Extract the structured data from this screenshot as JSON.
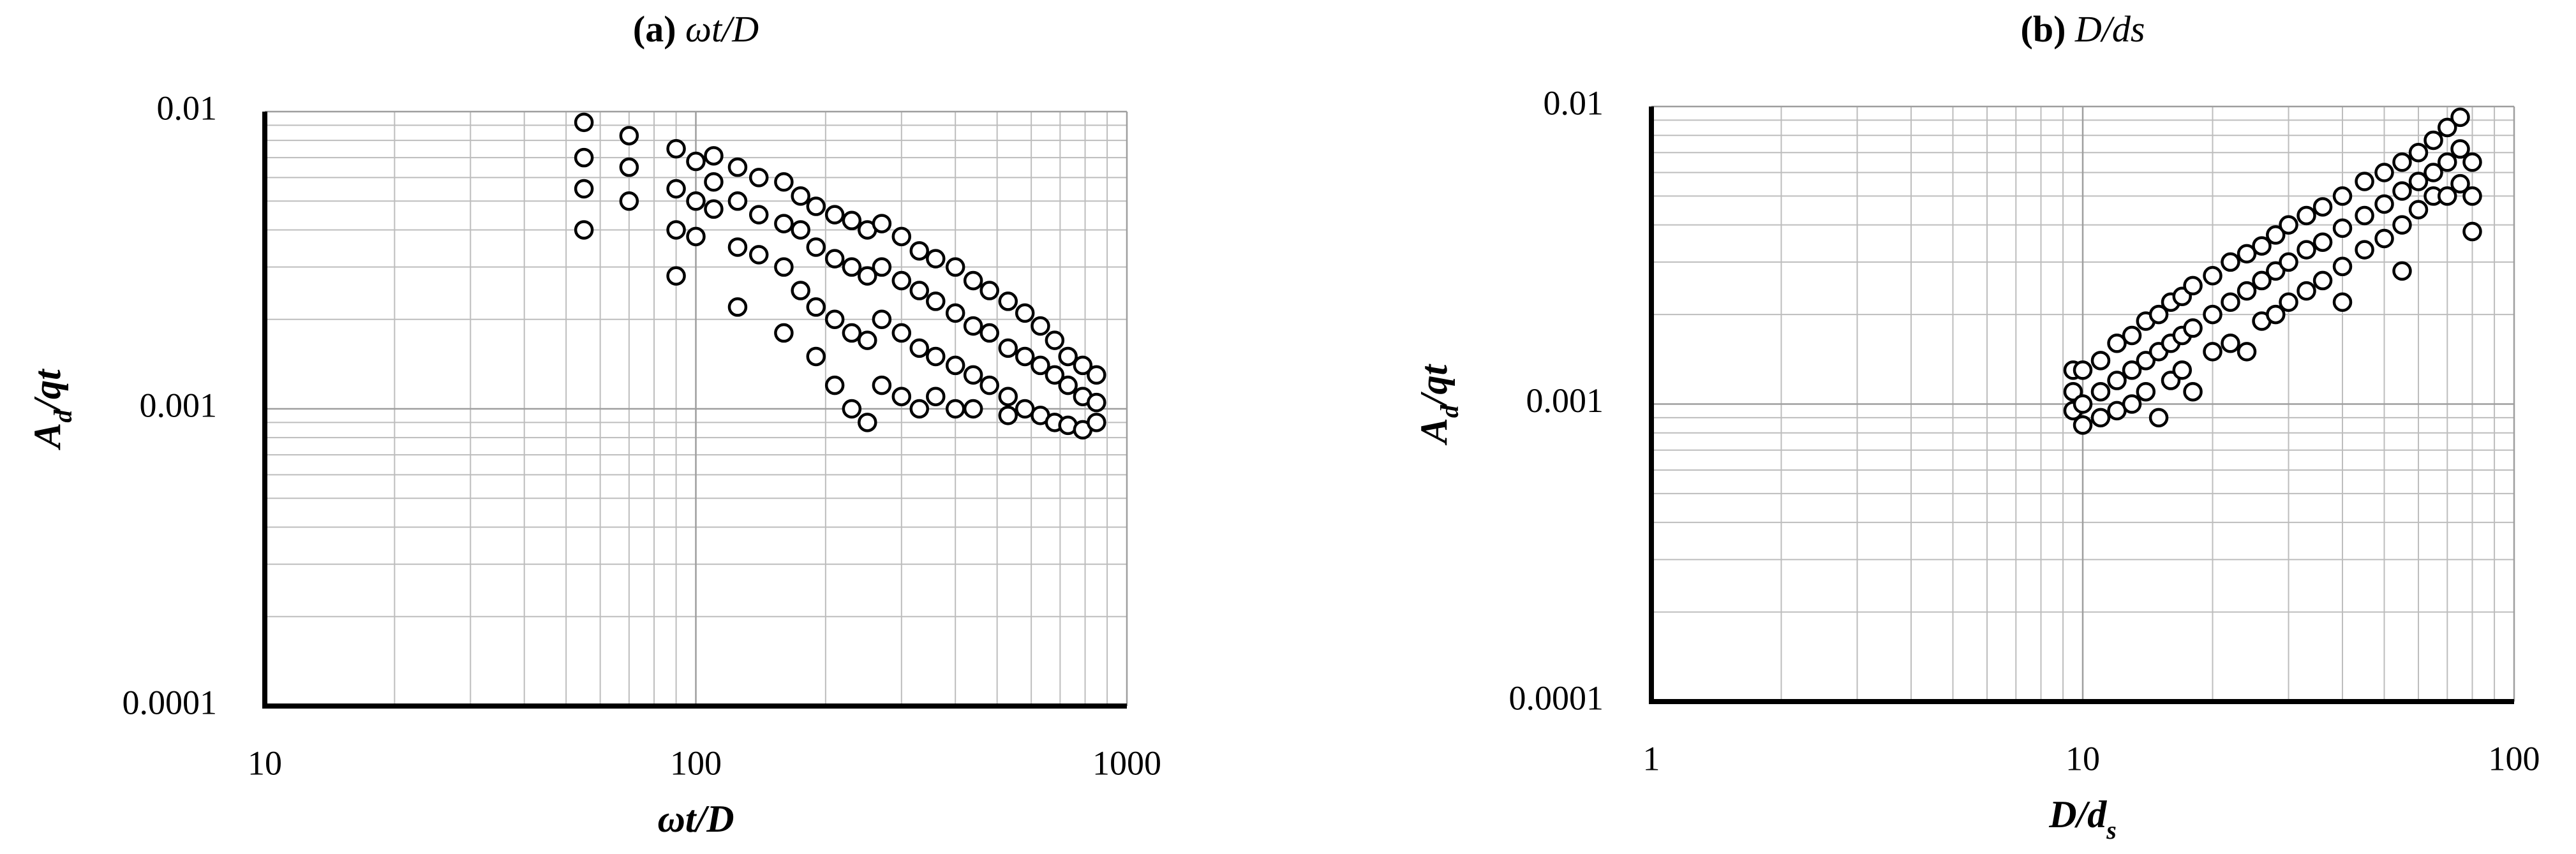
{
  "chart_data": [
    {
      "type": "scatter",
      "panel_label": "(a)",
      "title": "ωt/D",
      "xlabel": "ωt/D",
      "ylabel": [
        "A",
        "d",
        "/qt"
      ],
      "xscale": "log",
      "yscale": "log",
      "grid": true,
      "minor_grid": true,
      "xlim": [
        10,
        1000
      ],
      "xticks": [
        10,
        100,
        1000
      ],
      "ylim": [
        0.0001,
        0.01
      ],
      "yticks": [
        0.0001,
        0.001,
        0.01
      ],
      "marker_fill": "#ffffff",
      "marker_edge": "#000000",
      "x": [
        55,
        55,
        55,
        55,
        70,
        70,
        70,
        90,
        90,
        90,
        90,
        100,
        100,
        100,
        110,
        110,
        110,
        125,
        125,
        125,
        125,
        140,
        140,
        140,
        160,
        160,
        160,
        160,
        175,
        175,
        175,
        190,
        190,
        190,
        190,
        210,
        210,
        210,
        210,
        230,
        230,
        230,
        230,
        250,
        250,
        250,
        250,
        270,
        270,
        270,
        270,
        300,
        300,
        300,
        300,
        330,
        330,
        330,
        330,
        360,
        360,
        360,
        360,
        400,
        400,
        400,
        400,
        440,
        440,
        440,
        440,
        480,
        480,
        480,
        530,
        530,
        530,
        530,
        580,
        580,
        580,
        630,
        630,
        630,
        680,
        680,
        680,
        730,
        730,
        730,
        790,
        790,
        790,
        850,
        850,
        850
      ],
      "values": [
        0.0092,
        0.007,
        0.0055,
        0.004,
        0.0083,
        0.0065,
        0.005,
        0.0075,
        0.0055,
        0.004,
        0.0028,
        0.0068,
        0.005,
        0.0038,
        0.0071,
        0.0058,
        0.0047,
        0.0065,
        0.005,
        0.0035,
        0.0022,
        0.006,
        0.0045,
        0.0033,
        0.0058,
        0.0042,
        0.003,
        0.0018,
        0.0052,
        0.004,
        0.0025,
        0.0048,
        0.0035,
        0.0022,
        0.0015,
        0.0045,
        0.0032,
        0.002,
        0.0012,
        0.0043,
        0.003,
        0.0018,
        0.001,
        0.004,
        0.0028,
        0.0017,
        0.0009,
        0.0042,
        0.003,
        0.002,
        0.0012,
        0.0038,
        0.0027,
        0.0018,
        0.0011,
        0.0034,
        0.0025,
        0.0016,
        0.001,
        0.0032,
        0.0023,
        0.0015,
        0.0011,
        0.003,
        0.0021,
        0.0014,
        0.001,
        0.0027,
        0.0019,
        0.0013,
        0.001,
        0.0025,
        0.0018,
        0.0012,
        0.0023,
        0.0016,
        0.0011,
        0.00095,
        0.0021,
        0.0015,
        0.001,
        0.0019,
        0.0014,
        0.00095,
        0.0017,
        0.0013,
        0.0009,
        0.0015,
        0.0012,
        0.00088,
        0.0014,
        0.0011,
        0.00085,
        0.0013,
        0.00105,
        0.0009
      ]
    },
    {
      "type": "scatter",
      "panel_label": "(b)",
      "title": "D/ds",
      "xlabel": [
        "D/d",
        "s"
      ],
      "ylabel": [
        "A",
        "d",
        "/qt"
      ],
      "xscale": "log",
      "yscale": "log",
      "grid": true,
      "minor_grid": true,
      "xlim": [
        1,
        100
      ],
      "xticks": [
        1,
        10,
        100
      ],
      "ylim": [
        0.0001,
        0.01
      ],
      "yticks": [
        0.0001,
        0.001,
        0.01
      ],
      "marker_fill": "#ffffff",
      "marker_edge": "#000000",
      "x": [
        9.5,
        9.5,
        9.5,
        10,
        10,
        10,
        11,
        11,
        11,
        12,
        12,
        12,
        13,
        13,
        13,
        14,
        14,
        14,
        15,
        15,
        15,
        16,
        16,
        16,
        17,
        17,
        17,
        18,
        18,
        18,
        20,
        20,
        20,
        22,
        22,
        22,
        24,
        24,
        24,
        26,
        26,
        26,
        28,
        28,
        28,
        30,
        30,
        30,
        33,
        33,
        33,
        36,
        36,
        36,
        40,
        40,
        40,
        40,
        45,
        45,
        45,
        50,
        50,
        50,
        55,
        55,
        55,
        55,
        60,
        60,
        60,
        65,
        65,
        65,
        70,
        70,
        70,
        75,
        75,
        75,
        80,
        80,
        80
      ],
      "values": [
        0.0013,
        0.0011,
        0.00095,
        0.0013,
        0.001,
        0.00085,
        0.0014,
        0.0011,
        0.0009,
        0.0016,
        0.0012,
        0.00095,
        0.0017,
        0.0013,
        0.001,
        0.0019,
        0.0014,
        0.0011,
        0.002,
        0.0015,
        0.0009,
        0.0022,
        0.0016,
        0.0012,
        0.0023,
        0.0017,
        0.0013,
        0.0025,
        0.0018,
        0.0011,
        0.0027,
        0.002,
        0.0015,
        0.003,
        0.0022,
        0.0016,
        0.0032,
        0.0024,
        0.0015,
        0.0034,
        0.0026,
        0.0019,
        0.0037,
        0.0028,
        0.002,
        0.004,
        0.003,
        0.0022,
        0.0043,
        0.0033,
        0.0024,
        0.0046,
        0.0035,
        0.0026,
        0.005,
        0.0039,
        0.0029,
        0.0022,
        0.0056,
        0.0043,
        0.0033,
        0.006,
        0.0047,
        0.0036,
        0.0065,
        0.0052,
        0.004,
        0.0028,
        0.007,
        0.0056,
        0.0045,
        0.0077,
        0.006,
        0.005,
        0.0085,
        0.0065,
        0.005,
        0.0092,
        0.0072,
        0.0055,
        0.0065,
        0.005,
        0.0038
      ]
    }
  ]
}
